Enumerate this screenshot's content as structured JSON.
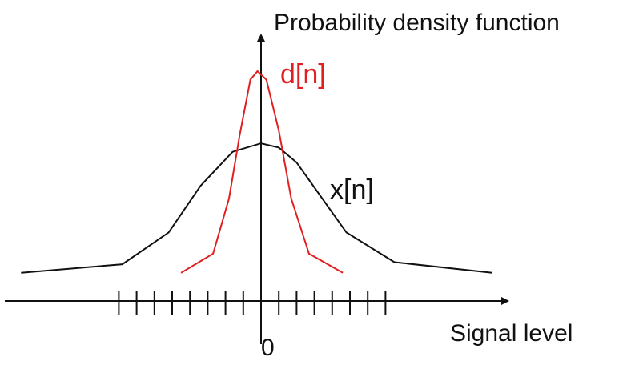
{
  "colors": {
    "axis": "#111111",
    "x_curve": "#111111",
    "d_curve": "#e02020",
    "background": "#ffffff"
  },
  "labels": {
    "y_axis_title": "Probability density function",
    "x_axis_title": "Signal level",
    "origin": "0",
    "d_label": "d[n]",
    "x_label": "x[n]"
  },
  "axis": {
    "tick_count": 16,
    "tick_range": [
      -8,
      7
    ]
  },
  "curves": {
    "x": {
      "name": "x[n]",
      "values": [
        [
          -13.5,
          0.05
        ],
        [
          -7.8,
          0.09
        ],
        [
          -5.2,
          0.24
        ],
        [
          -3.4,
          0.46
        ],
        [
          -1.6,
          0.62
        ],
        [
          0.0,
          0.66
        ],
        [
          1.0,
          0.64
        ],
        [
          2.0,
          0.57
        ],
        [
          4.8,
          0.24
        ],
        [
          7.5,
          0.1
        ],
        [
          13.0,
          0.05
        ]
      ]
    },
    "d": {
      "name": "d[n]",
      "values": [
        [
          -4.5,
          0.05
        ],
        [
          -2.7,
          0.14
        ],
        [
          -1.8,
          0.4
        ],
        [
          -1.2,
          0.7
        ],
        [
          -0.6,
          0.96
        ],
        [
          -0.2,
          1.0
        ],
        [
          0.3,
          0.96
        ],
        [
          1.0,
          0.72
        ],
        [
          1.7,
          0.4
        ],
        [
          2.7,
          0.14
        ],
        [
          4.6,
          0.05
        ]
      ]
    }
  }
}
